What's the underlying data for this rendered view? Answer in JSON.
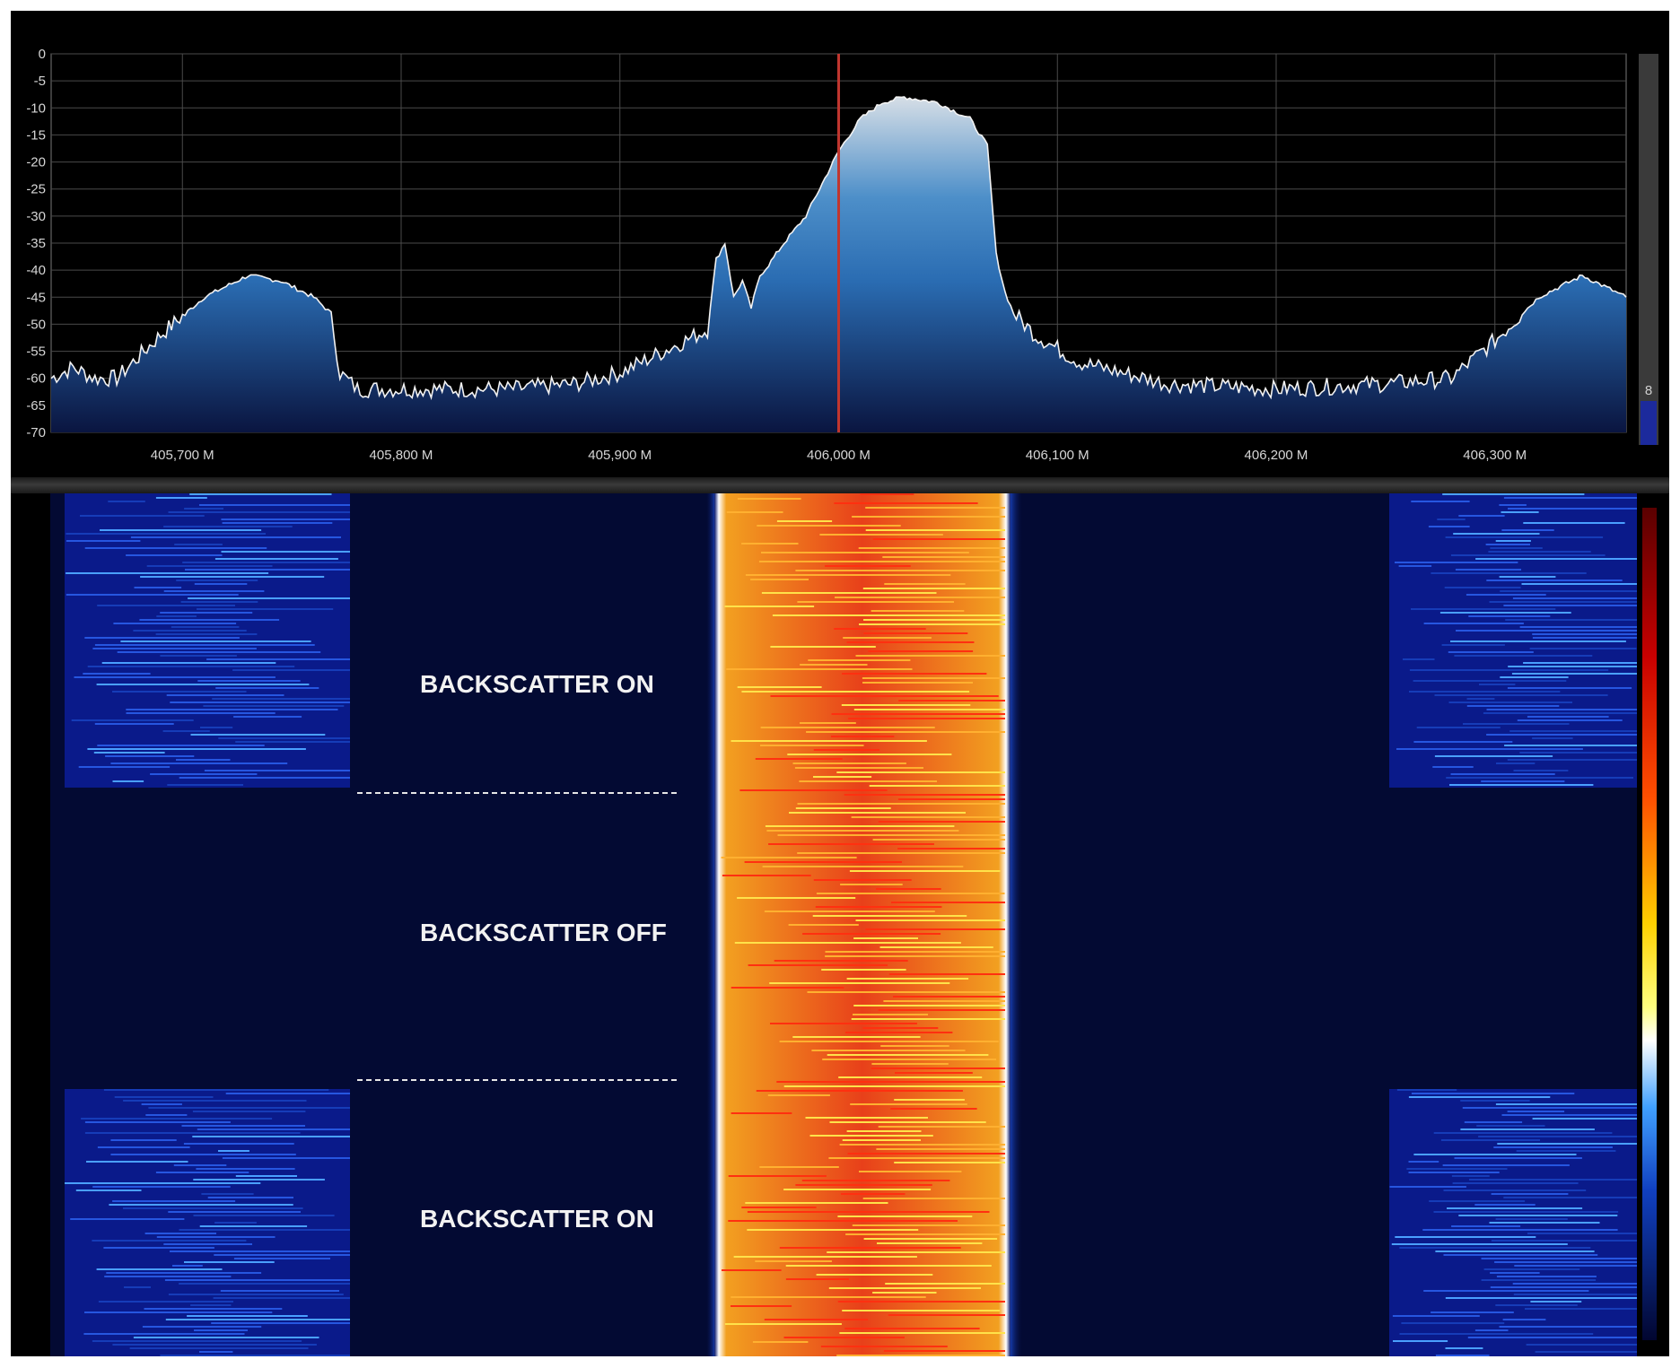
{
  "spectrum": {
    "y_ticks": [
      "0",
      "-5",
      "-10",
      "-15",
      "-20",
      "-25",
      "-30",
      "-35",
      "-40",
      "-45",
      "-50",
      "-55",
      "-60",
      "-65",
      "-70"
    ],
    "x_ticks": [
      "405,700 M",
      "405,800 M",
      "405,900 M",
      "406,000 M",
      "406,100 M",
      "406,200 M",
      "406,300 M"
    ],
    "level_value": "8"
  },
  "chart_data": {
    "type": "area",
    "xlabel": "",
    "ylabel": "",
    "xlim": [
      405.64,
      406.36
    ],
    "ylim": [
      -70,
      0
    ],
    "x_unit": "M",
    "grid": true,
    "center_marker_x": 406.0,
    "series": [
      {
        "x": [
          405.64,
          405.65,
          405.66,
          405.67,
          405.69,
          405.71,
          405.73,
          405.745,
          405.76,
          405.768,
          405.772,
          405.78,
          405.8,
          405.82,
          405.85,
          405.88,
          405.9,
          405.915,
          405.93,
          405.94,
          405.944,
          405.948,
          405.952,
          405.956,
          405.96,
          405.964,
          405.968,
          405.975,
          405.985,
          405.995,
          406.0,
          406.005,
          406.01,
          406.02,
          406.03,
          406.045,
          406.06,
          406.068,
          406.072,
          406.076,
          406.08,
          406.09,
          406.11,
          406.15,
          406.2,
          406.25,
          406.28,
          406.3,
          406.32,
          406.34,
          406.36
        ],
        "values": [
          -60,
          -58,
          -60,
          -60,
          -52,
          -45,
          -41,
          -42,
          -45,
          -48,
          -59,
          -62,
          -62,
          -62,
          -62,
          -61,
          -59,
          -56,
          -53,
          -51,
          -38,
          -35,
          -45,
          -42,
          -47,
          -41,
          -39,
          -35,
          -30,
          -22,
          -18,
          -15,
          -12,
          -9,
          -8,
          -9,
          -12,
          -17,
          -37,
          -44,
          -48,
          -52,
          -57,
          -61,
          -62,
          -61,
          -60,
          -53,
          -45,
          -41,
          -45
        ]
      }
    ]
  },
  "waterfall": {
    "labels": [
      "BACKSCATTER ON",
      "BACKSCATTER OFF",
      "BACKSCATTER ON"
    ]
  }
}
